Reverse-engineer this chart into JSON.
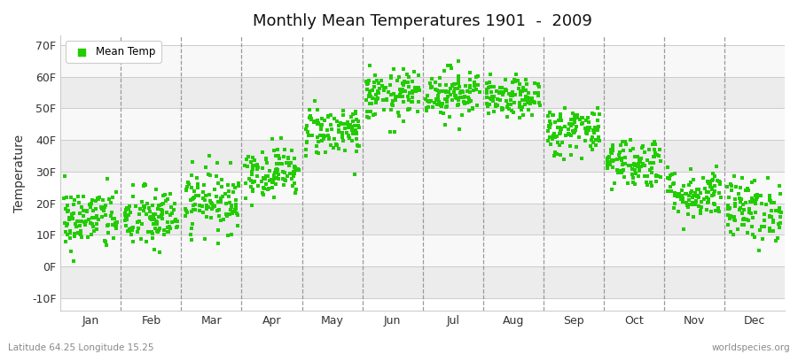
{
  "title": "Monthly Mean Temperatures 1901  -  2009",
  "ylabel": "Temperature",
  "xlabel_labels": [
    "Jan",
    "Feb",
    "Mar",
    "Apr",
    "May",
    "Jun",
    "Jul",
    "Aug",
    "Sep",
    "Oct",
    "Nov",
    "Dec"
  ],
  "ytick_labels": [
    "-10F",
    "0F",
    "10F",
    "20F",
    "30F",
    "40F",
    "50F",
    "60F",
    "70F"
  ],
  "ytick_values": [
    -10,
    0,
    10,
    20,
    30,
    40,
    50,
    60,
    70
  ],
  "ylim": [
    -14,
    73
  ],
  "dot_color": "#22cc00",
  "dot_size": 8,
  "bg_color": "#ffffff",
  "plot_bg_color": "#ffffff",
  "band_colors": [
    "#ececec",
    "#f8f8f8"
  ],
  "legend_label": "Mean Temp",
  "footer_left": "Latitude 64.25 Longitude 15.25",
  "footer_right": "worldspecies.org",
  "n_years": 109,
  "monthly_means": [
    15,
    15,
    21,
    30,
    43,
    54,
    55,
    53,
    43,
    33,
    23,
    18
  ],
  "monthly_stds": [
    5,
    5,
    5,
    4,
    4,
    4,
    4,
    3,
    4,
    4,
    4,
    5
  ]
}
